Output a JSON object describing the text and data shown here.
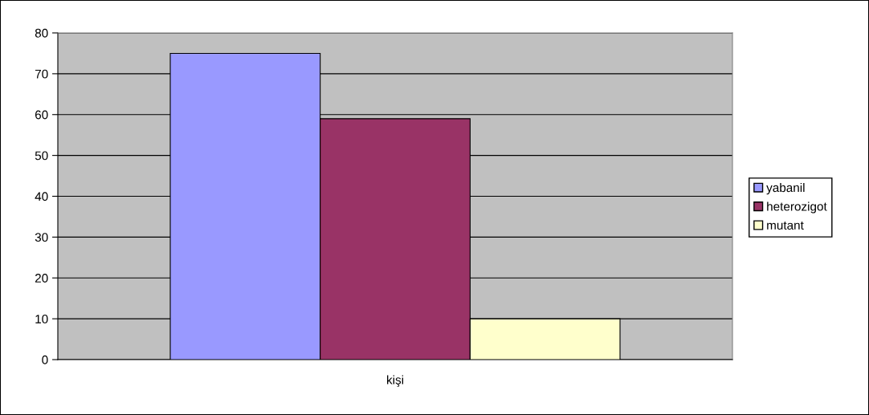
{
  "chart_data": {
    "type": "bar",
    "categories": [
      "kişi"
    ],
    "series": [
      {
        "name": "yabanil",
        "color": "#9999ff",
        "values": [
          75
        ]
      },
      {
        "name": "heterozigot",
        "color": "#993366",
        "values": [
          59
        ]
      },
      {
        "name": "mutant",
        "color": "#ffffcc",
        "values": [
          10
        ]
      }
    ],
    "ylim": [
      0,
      80
    ],
    "yticks": [
      0,
      10,
      20,
      30,
      40,
      50,
      60,
      70,
      80
    ],
    "grid": "y",
    "legend": "right"
  }
}
